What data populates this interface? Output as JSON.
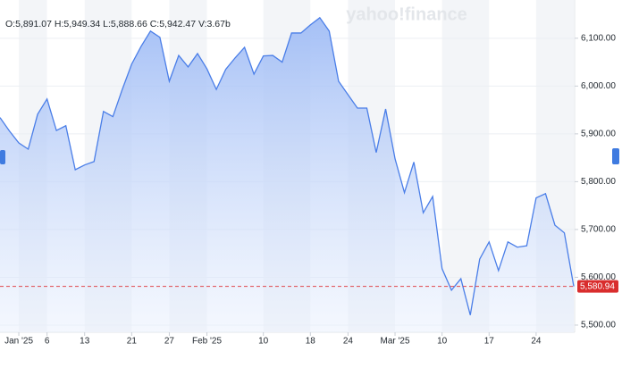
{
  "chart_data": {
    "type": "area",
    "ohlc": "O:5,891.07 H:5,949.34 L:5,888.66 C:5,942.47 V:3.67b",
    "watermark": "yahoo!finance",
    "categories": [
      null,
      null,
      "Jan '25",
      null,
      null,
      "6",
      null,
      null,
      null,
      "13",
      null,
      null,
      null,
      null,
      "21",
      null,
      null,
      null,
      "27",
      null,
      null,
      null,
      "Feb '25",
      null,
      null,
      null,
      null,
      null,
      "10",
      null,
      null,
      null,
      null,
      "18",
      null,
      null,
      null,
      "24",
      null,
      null,
      null,
      null,
      "Mar '25",
      null,
      null,
      null,
      null,
      "10",
      null,
      null,
      null,
      null,
      "17",
      null,
      null,
      null,
      null,
      "24",
      null,
      null,
      null,
      null
    ],
    "values": [
      5934,
      5906,
      5881,
      5868,
      5941,
      5973,
      5907,
      5917,
      5825,
      5835,
      5842,
      5947,
      5936,
      5993,
      6046,
      6083,
      6115,
      6102,
      6010,
      6064,
      6040,
      6068,
      6036,
      5993,
      6035,
      6059,
      6081,
      6025,
      6063,
      6064,
      6050,
      6111,
      6111,
      6128,
      6143,
      6115,
      6010,
      5982,
      5954,
      5954,
      5861,
      5952,
      5848,
      5777,
      5841,
      5735,
      5769,
      5618,
      5573,
      5597,
      5521,
      5638,
      5674,
      5614,
      5674,
      5663,
      5666,
      5766,
      5775,
      5709,
      5693,
      5581
    ],
    "color": "#4a7ee8",
    "ylim": [
      5485,
      6180
    ],
    "yticks": [
      {
        "value": 5500,
        "label": "5,500.00"
      },
      {
        "value": 5600,
        "label": "5,600.00"
      },
      {
        "value": 5700,
        "label": "5,700.00"
      },
      {
        "value": 5800,
        "label": "5,800.00"
      },
      {
        "value": 5900,
        "label": "5,900.00"
      },
      {
        "value": 6000,
        "label": "6,000.00"
      },
      {
        "value": 6100,
        "label": "6,100.00"
      }
    ],
    "last_price": {
      "value": 5580.94,
      "label": "5,580.94"
    },
    "grid": true
  }
}
